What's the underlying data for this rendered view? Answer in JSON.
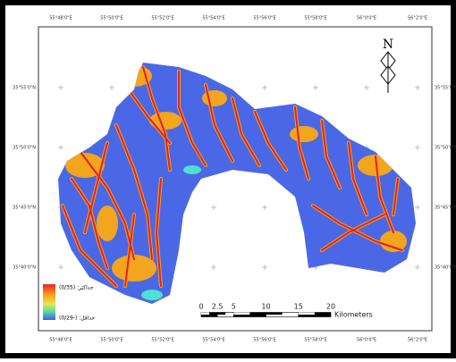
{
  "map": {
    "north": "N",
    "top_labels": [
      "55°48'0\"E",
      "55°50'0\"E",
      "55°52'0\"E",
      "55°54'0\"E",
      "55°56'0\"E",
      "55°58'0\"E",
      "56°0'0\"E",
      "56°2'0\"E"
    ],
    "bottom_labels": [
      "55°48'0\"E",
      "55°50'0\"E",
      "55°52'0\"E",
      "55°54'0\"E",
      "55°56'0\"E",
      "55°58'0\"E",
      "56°0'0\"E",
      "56°2'0\"E"
    ],
    "left_labels": [
      "35°55'0\"N",
      "35°50'0\"N",
      "35°45'0\"N",
      "35°40'0\"N"
    ],
    "right_labels": [
      "35°55'0\"N",
      "35°50'0\"N",
      "35°45'0\"N",
      "35°40'0\"N"
    ],
    "legend": {
      "max": "حداکثر: (0/35)",
      "min": "حداقل: (-0/29)"
    },
    "scale_bar": {
      "labels": [
        "0",
        "2.5",
        "5",
        "10",
        "15",
        "20"
      ],
      "unit": "Kilometers"
    }
  }
}
